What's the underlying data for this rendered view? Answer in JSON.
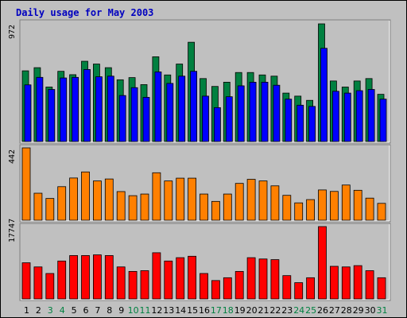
{
  "page": {
    "title": "Daily usage for May 2003"
  },
  "colors": {
    "background": "#c0c0c0",
    "title": "#0000c0",
    "hits": "#008040",
    "files": "#0000ff",
    "kbytes": "#ff8000",
    "visits": "#ff0000",
    "weekday_label": "#000000",
    "weekend_label": "#008040"
  },
  "chart_data": [
    {
      "type": "bar",
      "categories": [
        "1",
        "2",
        "3",
        "4",
        "5",
        "6",
        "7",
        "8",
        "9",
        "10",
        "11",
        "12",
        "13",
        "14",
        "15",
        "16",
        "17",
        "18",
        "19",
        "20",
        "21",
        "22",
        "23",
        "24",
        "25",
        "26",
        "27",
        "28",
        "29",
        "30",
        "31"
      ],
      "weekend_days": [
        "3",
        "4",
        "10",
        "11",
        "17",
        "18",
        "24",
        "25",
        "31"
      ],
      "max_label": "972",
      "ylim": [
        0,
        972
      ],
      "series": [
        {
          "values": [
            584,
            610,
            450,
            580,
            552,
            663,
            640,
            610,
            510,
            528,
            470,
            700,
            550,
            640,
            820,
            520,
            455,
            490,
            570,
            570,
            550,
            540,
            400,
            375,
            340,
            972,
            500,
            450,
            500,
            520,
            390
          ]
        },
        {
          "values": [
            468,
            530,
            430,
            525,
            530,
            595,
            535,
            540,
            380,
            445,
            365,
            575,
            480,
            540,
            580,
            375,
            280,
            370,
            460,
            490,
            490,
            465,
            350,
            300,
            290,
            770,
            415,
            400,
            420,
            430,
            350
          ]
        }
      ]
    },
    {
      "type": "bar",
      "categories": [
        "1",
        "2",
        "3",
        "4",
        "5",
        "6",
        "7",
        "8",
        "9",
        "10",
        "11",
        "12",
        "13",
        "14",
        "15",
        "16",
        "17",
        "18",
        "19",
        "20",
        "21",
        "22",
        "23",
        "24",
        "25",
        "26",
        "27",
        "28",
        "29",
        "30",
        "31"
      ],
      "max_label": "442",
      "ylim": [
        0,
        442
      ],
      "series": [
        {
          "values": [
            442,
            165,
            133,
            205,
            258,
            295,
            240,
            252,
            175,
            150,
            160,
            290,
            240,
            257,
            257,
            160,
            115,
            160,
            225,
            250,
            240,
            210,
            152,
            106,
            126,
            185,
            176,
            215,
            183,
            135,
            103
          ]
        }
      ]
    },
    {
      "type": "bar",
      "categories": [
        "1",
        "2",
        "3",
        "4",
        "5",
        "6",
        "7",
        "8",
        "9",
        "10",
        "11",
        "12",
        "13",
        "14",
        "15",
        "16",
        "17",
        "18",
        "19",
        "20",
        "21",
        "22",
        "23",
        "24",
        "25",
        "26",
        "27",
        "28",
        "29",
        "30",
        "31"
      ],
      "max_label": "17747",
      "ylim": [
        0,
        17747
      ],
      "series": [
        {
          "values": [
            8870,
            7850,
            6240,
            9300,
            10640,
            10640,
            10810,
            10640,
            7850,
            6750,
            6930,
            11330,
            9300,
            10120,
            10470,
            6240,
            4510,
            5200,
            6750,
            10120,
            9800,
            9640,
            5720,
            3990,
            5200,
            17747,
            8000,
            7850,
            8170,
            6930,
            5200
          ]
        }
      ]
    }
  ]
}
